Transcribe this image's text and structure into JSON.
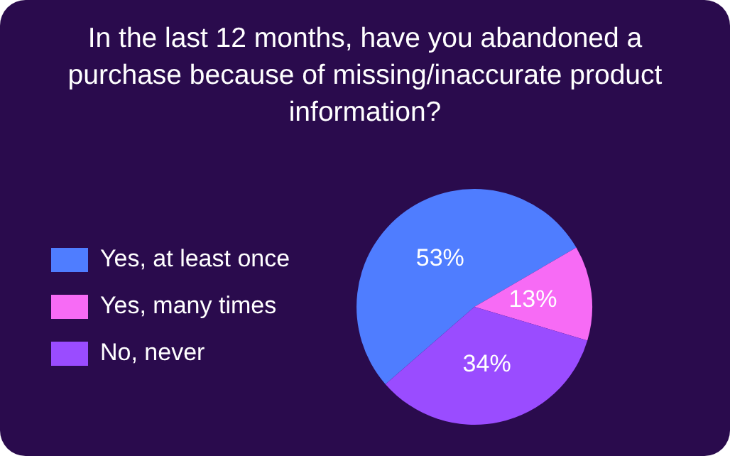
{
  "chart_data": {
    "type": "pie",
    "title": "In the last 12 months, have you abandoned a purchase because of missing/inaccurate product information?",
    "categories": [
      "Yes, at least once",
      "Yes, many times",
      "No, never"
    ],
    "values": [
      53,
      13,
      34
    ],
    "colors": [
      "#4f7dff",
      "#f76bf5",
      "#9a4cff"
    ],
    "value_labels": [
      "53%",
      "13%",
      "34%"
    ],
    "legend": "left"
  }
}
